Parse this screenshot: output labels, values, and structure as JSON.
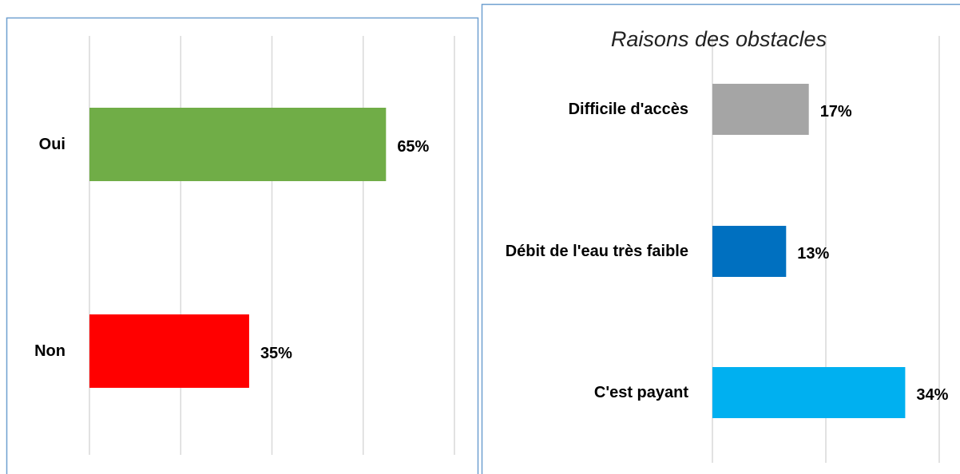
{
  "chart_data": [
    {
      "type": "bar",
      "orientation": "horizontal",
      "categories": [
        "Oui",
        "Non"
      ],
      "values": [
        65,
        35
      ],
      "value_labels": [
        "65%",
        "35%"
      ],
      "colors": [
        "#70ad47",
        "#ff0000"
      ],
      "xlim": [
        0,
        80
      ],
      "xticks": [
        0,
        20,
        40,
        60,
        80
      ],
      "grid": true
    },
    {
      "type": "bar",
      "orientation": "horizontal",
      "title": "Raisons des obstacles",
      "categories": [
        "Difficile d'accès",
        "Débit de l'eau très faible",
        "C'est payant"
      ],
      "values": [
        17,
        13,
        34
      ],
      "value_labels": [
        "17%",
        "13%",
        "34%"
      ],
      "colors": [
        "#a5a5a5",
        "#0070c0",
        "#00b0f0"
      ],
      "xlim": [
        0,
        40
      ],
      "xticks": [
        0,
        20,
        40
      ],
      "grid": true
    }
  ]
}
